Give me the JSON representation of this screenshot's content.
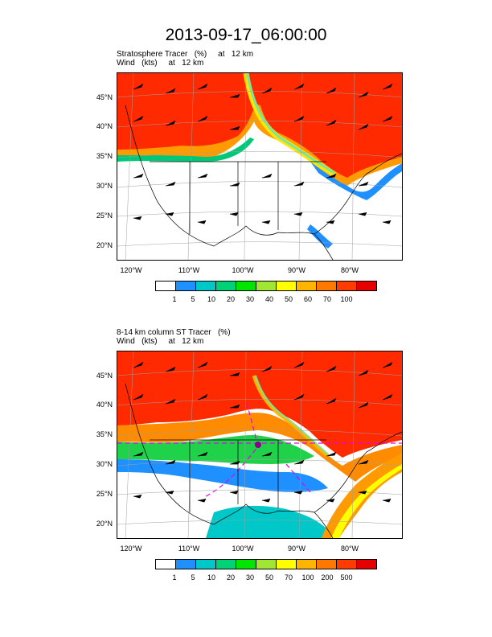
{
  "title": "2013-09-17_06:00:00",
  "panels": [
    {
      "subtitle_line1": "Stratosphere Tracer   (%)     at   12 km",
      "subtitle_line2": "Wind   (kts)     at   12 km",
      "lat_labels": [
        "45°N",
        "40°N",
        "35°N",
        "30°N",
        "25°N",
        "20°N"
      ],
      "lon_labels": [
        "120°W",
        "110°W",
        "100°W",
        "90°W",
        "80°W"
      ],
      "colorbar_labels": [
        "1",
        "5",
        "10",
        "20",
        "30",
        "40",
        "50",
        "60",
        "70",
        "100"
      ]
    },
    {
      "subtitle_line1": "8-14 km column ST Tracer   (%)",
      "subtitle_line2": "Wind   (kts)     at   12 km",
      "lat_labels": [
        "45°N",
        "40°N",
        "35°N",
        "30°N",
        "25°N",
        "20°N"
      ],
      "lon_labels": [
        "120°W",
        "110°W",
        "100°W",
        "90°W",
        "80°W"
      ],
      "colorbar_labels": [
        "1",
        "5",
        "10",
        "20",
        "30",
        "50",
        "70",
        "100",
        "200",
        "500"
      ]
    }
  ],
  "colorbar_colors": [
    "#ffffff",
    "#1e90ff",
    "#00c8c8",
    "#00d278",
    "#00e600",
    "#a0e632",
    "#ffff00",
    "#ffb400",
    "#ff7800",
    "#ff3c00",
    "#e60000"
  ]
}
